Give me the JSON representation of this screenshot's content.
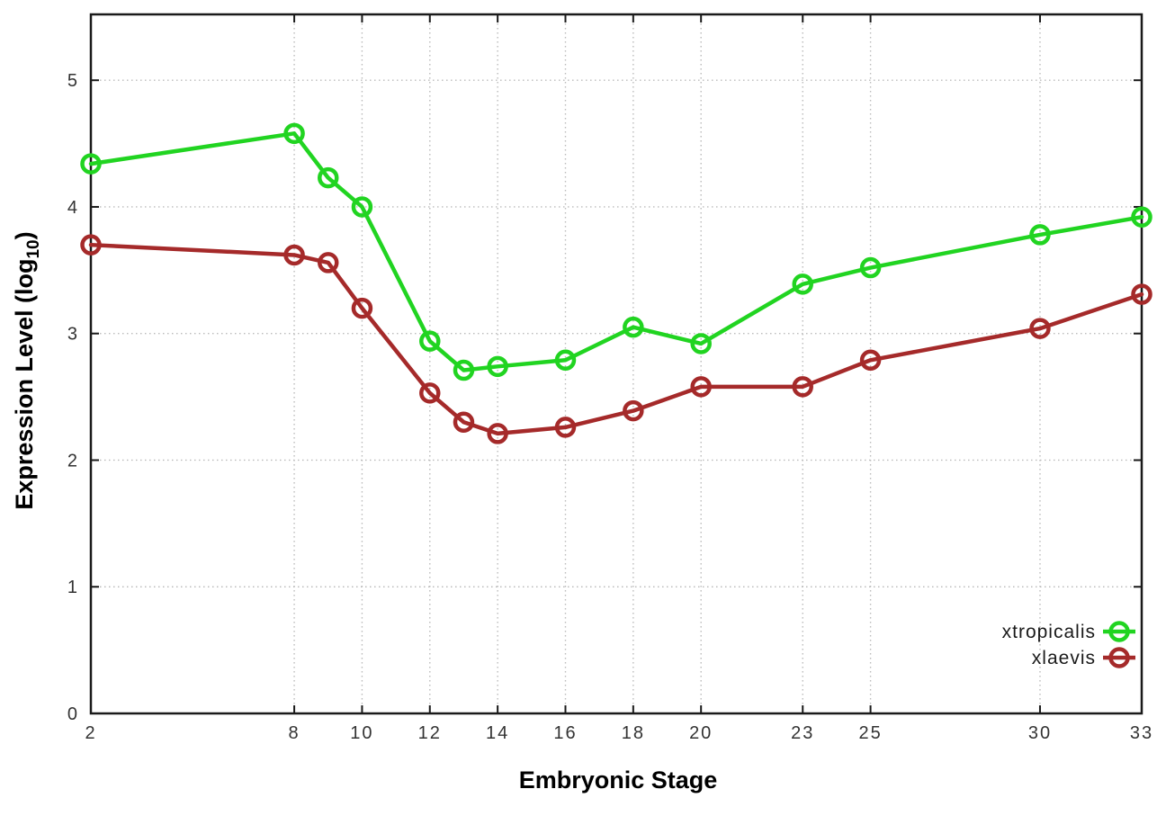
{
  "chart_data": {
    "type": "line",
    "title": "",
    "xlabel": "Embryonic Stage",
    "ylabel": {
      "full": "Expression Level (log10)",
      "main": "Expression Level (log",
      "subscript": "10",
      "suffix": ")"
    },
    "x": [
      2,
      8,
      9,
      10,
      12,
      13,
      14,
      16,
      18,
      20,
      23,
      25,
      30,
      33
    ],
    "xticks": [
      2,
      8,
      10,
      12,
      14,
      16,
      18,
      20,
      23,
      25,
      30,
      33
    ],
    "yticks": [
      0,
      1,
      2,
      3,
      4,
      5
    ],
    "xlim": [
      2,
      33
    ],
    "ylim": [
      0,
      5.52
    ],
    "grid": true,
    "grid_style": "dotted",
    "legend_position": "inside-bottom-right",
    "series": [
      {
        "name": "xtropicalis",
        "color": "#21d421",
        "marker": "open-circle",
        "values": [
          4.34,
          4.58,
          4.23,
          4.0,
          2.94,
          2.71,
          2.74,
          2.79,
          3.05,
          2.92,
          3.39,
          3.52,
          3.78,
          3.92
        ]
      },
      {
        "name": "xlaevis",
        "color": "#a52a2a",
        "marker": "open-circle",
        "values": [
          3.7,
          3.62,
          3.56,
          3.2,
          2.53,
          2.3,
          2.21,
          2.26,
          2.39,
          2.58,
          2.58,
          2.79,
          3.04,
          3.31
        ]
      }
    ],
    "colors": {
      "background": "#ffffff",
      "plot_border": "#1a1a1a",
      "grid": "#bbbbbb",
      "tick_label": "#333333",
      "axis_label": "#000000",
      "legend_text": "#1a1a1a"
    }
  }
}
